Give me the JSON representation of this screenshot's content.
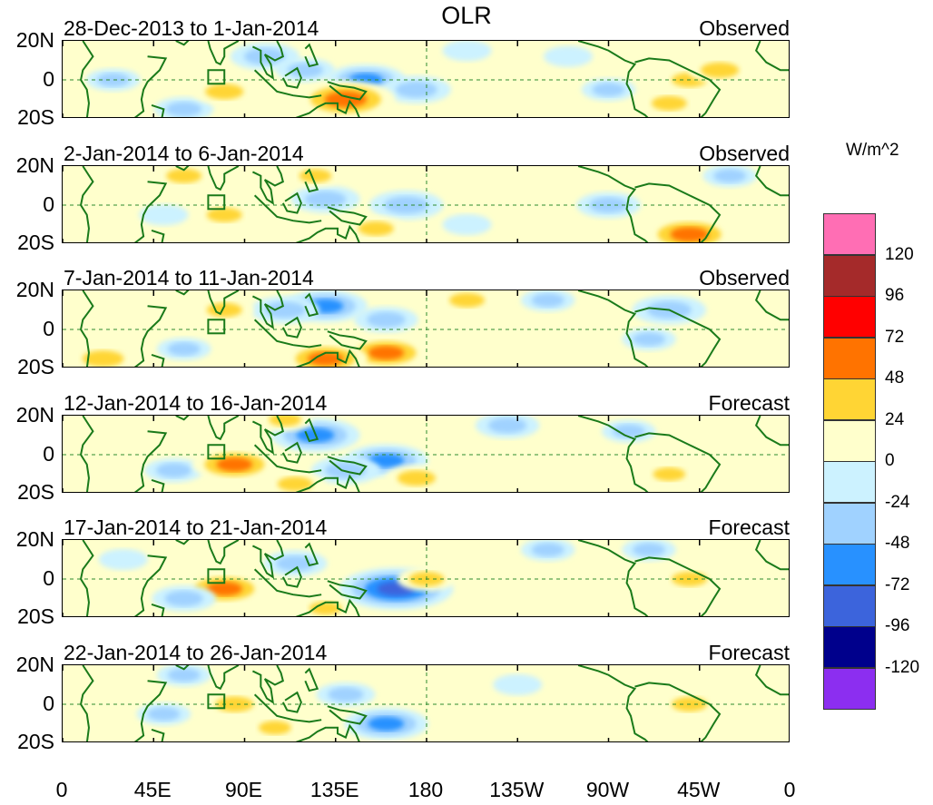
{
  "chart_data": {
    "type": "heatmap",
    "title": "OLR",
    "units": "W/m^2",
    "x_ticks": [
      "0",
      "45E",
      "90E",
      "135E",
      "180",
      "135W",
      "90W",
      "45W",
      "0"
    ],
    "y_ticks": [
      "20N",
      "0",
      "20S"
    ],
    "xlim": [
      0,
      360
    ],
    "ylim": [
      -20,
      20
    ],
    "colorbar": {
      "levels": [
        "120",
        "96",
        "72",
        "48",
        "24",
        "0",
        "-24",
        "-48",
        "-72",
        "-96",
        "-120"
      ],
      "colors": [
        "#ff6eb4",
        "#a52a2a",
        "#ff0000",
        "#ff7300",
        "#ffd534",
        "#ffffcc",
        "#ccf2ff",
        "#a0d2ff",
        "#2891ff",
        "#3c64dc",
        "#00008c",
        "#8c2ef0"
      ]
    },
    "panels": [
      {
        "period": "28-Dec-2013 to 1-Jan-2014",
        "source": "Observed",
        "anomalies": [
          {
            "lon": 100,
            "lat": 12,
            "value": -40
          },
          {
            "lon": 120,
            "lat": 5,
            "value": -30
          },
          {
            "lon": 150,
            "lat": 0,
            "value": -50
          },
          {
            "lon": 175,
            "lat": -5,
            "value": -40
          },
          {
            "lon": 60,
            "lat": -15,
            "value": -30
          },
          {
            "lon": 200,
            "lat": 15,
            "value": -20
          },
          {
            "lon": 250,
            "lat": 12,
            "value": -20
          },
          {
            "lon": 270,
            "lat": -5,
            "value": -25
          },
          {
            "lon": 140,
            "lat": -10,
            "value": 70
          },
          {
            "lon": 80,
            "lat": -6,
            "value": 35
          },
          {
            "lon": 310,
            "lat": 0,
            "value": 30
          },
          {
            "lon": 325,
            "lat": 5,
            "value": 35
          },
          {
            "lon": 300,
            "lat": -12,
            "value": 30
          },
          {
            "lon": 25,
            "lat": 0,
            "value": -25
          }
        ]
      },
      {
        "period": "2-Jan-2014 to 6-Jan-2014",
        "source": "Observed",
        "anomalies": [
          {
            "lon": 130,
            "lat": 3,
            "value": -40
          },
          {
            "lon": 170,
            "lat": 0,
            "value": -45
          },
          {
            "lon": 270,
            "lat": 0,
            "value": -35
          },
          {
            "lon": 200,
            "lat": -10,
            "value": -20
          },
          {
            "lon": 50,
            "lat": -5,
            "value": -20
          },
          {
            "lon": 310,
            "lat": -15,
            "value": 60
          },
          {
            "lon": 60,
            "lat": 15,
            "value": 30
          },
          {
            "lon": 125,
            "lat": 15,
            "value": 25
          },
          {
            "lon": 155,
            "lat": -12,
            "value": 30
          },
          {
            "lon": 80,
            "lat": -5,
            "value": 30
          },
          {
            "lon": 330,
            "lat": 15,
            "value": -25
          }
        ]
      },
      {
        "period": "7-Jan-2014 to 11-Jan-2014",
        "source": "Observed",
        "anomalies": [
          {
            "lon": 130,
            "lat": 12,
            "value": -55
          },
          {
            "lon": 110,
            "lat": 10,
            "value": -40
          },
          {
            "lon": 160,
            "lat": 5,
            "value": -35
          },
          {
            "lon": 300,
            "lat": 10,
            "value": -45
          },
          {
            "lon": 240,
            "lat": 15,
            "value": -25
          },
          {
            "lon": 60,
            "lat": -10,
            "value": -25
          },
          {
            "lon": 290,
            "lat": -5,
            "value": -25
          },
          {
            "lon": 160,
            "lat": -12,
            "value": 55
          },
          {
            "lon": 130,
            "lat": -15,
            "value": 55
          },
          {
            "lon": 80,
            "lat": 10,
            "value": 30
          },
          {
            "lon": 200,
            "lat": 15,
            "value": 30
          },
          {
            "lon": 20,
            "lat": -15,
            "value": 40
          }
        ]
      },
      {
        "period": "12-Jan-2014 to 16-Jan-2014",
        "source": "Forecast",
        "anomalies": [
          {
            "lon": 125,
            "lat": 10,
            "value": -60
          },
          {
            "lon": 160,
            "lat": -3,
            "value": -55
          },
          {
            "lon": 140,
            "lat": -8,
            "value": -40
          },
          {
            "lon": 220,
            "lat": 15,
            "value": -35
          },
          {
            "lon": 55,
            "lat": -8,
            "value": -30
          },
          {
            "lon": 280,
            "lat": 12,
            "value": -25
          },
          {
            "lon": 85,
            "lat": -5,
            "value": 55
          },
          {
            "lon": 175,
            "lat": -12,
            "value": 35
          },
          {
            "lon": 115,
            "lat": -15,
            "value": 30
          },
          {
            "lon": 300,
            "lat": -10,
            "value": 25
          },
          {
            "lon": 110,
            "lat": 18,
            "value": 25
          }
        ]
      },
      {
        "period": "17-Jan-2014 to 21-Jan-2014",
        "source": "Forecast",
        "anomalies": [
          {
            "lon": 165,
            "lat": -5,
            "value": -85
          },
          {
            "lon": 80,
            "lat": -5,
            "value": 55
          },
          {
            "lon": 180,
            "lat": 0,
            "value": 30
          },
          {
            "lon": 115,
            "lat": 8,
            "value": -35
          },
          {
            "lon": 60,
            "lat": -10,
            "value": -35
          },
          {
            "lon": 240,
            "lat": 15,
            "value": -25
          },
          {
            "lon": 290,
            "lat": 15,
            "value": -25
          },
          {
            "lon": 310,
            "lat": 0,
            "value": 30
          },
          {
            "lon": 130,
            "lat": -15,
            "value": 25
          },
          {
            "lon": 30,
            "lat": 10,
            "value": -20
          }
        ]
      },
      {
        "period": "22-Jan-2014 to 26-Jan-2014",
        "source": "Forecast",
        "anomalies": [
          {
            "lon": 160,
            "lat": -10,
            "value": -55
          },
          {
            "lon": 140,
            "lat": 5,
            "value": -30
          },
          {
            "lon": 85,
            "lat": 0,
            "value": 35
          },
          {
            "lon": 60,
            "lat": 15,
            "value": -25
          },
          {
            "lon": 50,
            "lat": -5,
            "value": -25
          },
          {
            "lon": 225,
            "lat": 10,
            "value": -20
          },
          {
            "lon": 310,
            "lat": 0,
            "value": 30
          },
          {
            "lon": 105,
            "lat": -12,
            "value": 25
          },
          {
            "lon": 180,
            "lat": 5,
            "value": 20
          }
        ]
      }
    ]
  }
}
